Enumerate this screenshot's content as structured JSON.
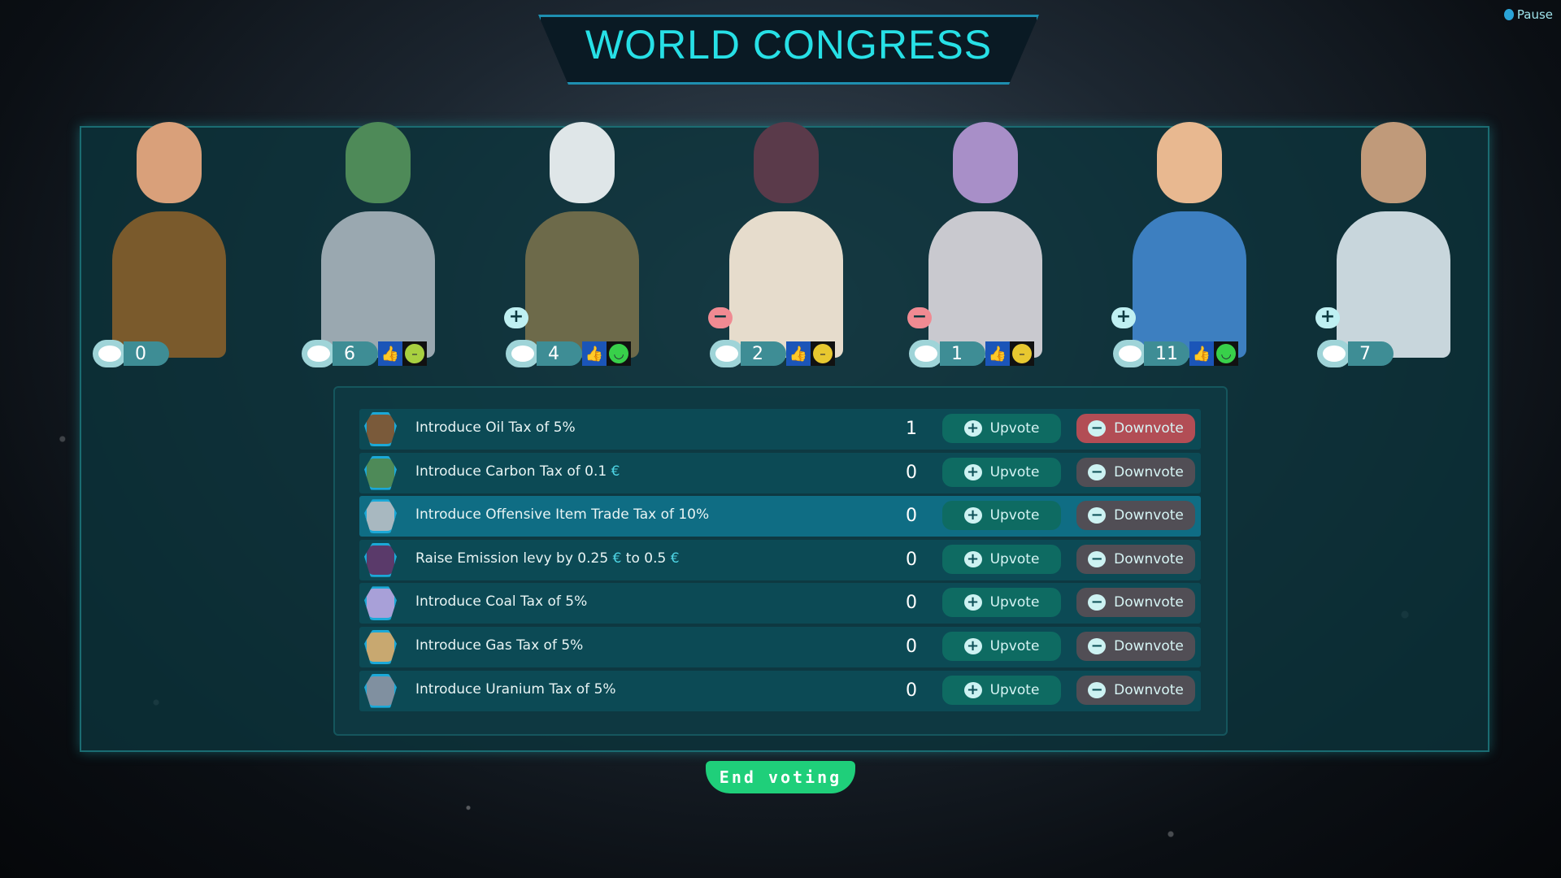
{
  "title": "WORLD CONGRESS",
  "pause_label": "Pause",
  "end_voting_label": "End voting",
  "colors": {
    "accent": "#27e0e6",
    "upvote": "#0e6b62",
    "downvote": "#514e55",
    "downvote_active": "#b24d55",
    "end_voting": "#1fcf7a"
  },
  "leaders": [
    {
      "count": "0",
      "opinion": null,
      "mood": null,
      "vote_bubble": null
    },
    {
      "count": "6",
      "opinion": "thumbs-up",
      "mood": "neutral",
      "vote_bubble": null
    },
    {
      "count": "4",
      "opinion": "thumbs-up",
      "mood": "happy",
      "vote_bubble": "upvote"
    },
    {
      "count": "2",
      "opinion": "thumbs-up",
      "mood": "uneasy",
      "vote_bubble": "downvote"
    },
    {
      "count": "1",
      "opinion": "thumbs-up",
      "mood": "uneasy",
      "vote_bubble": "downvote"
    },
    {
      "count": "11",
      "opinion": "thumbs-up",
      "mood": "happy",
      "vote_bubble": "upvote"
    },
    {
      "count": "7",
      "opinion": null,
      "mood": null,
      "vote_bubble": "upvote"
    }
  ],
  "upvote_label": "Upvote",
  "downvote_label": "Downvote",
  "proposals": [
    {
      "text": "Introduce Oil Tax of 5%",
      "votes": "1",
      "downvoted": true
    },
    {
      "text": "Introduce Carbon Tax of 0.1",
      "currency": "€",
      "votes": "0"
    },
    {
      "text": "Introduce Offensive Item Trade Tax of 10%",
      "votes": "0",
      "selected": true
    },
    {
      "text": "Raise Emission levy by 0.25",
      "currency": "€",
      "text2": " to 0.5",
      "currency2": "€",
      "votes": "0"
    },
    {
      "text": "Introduce Coal Tax of 5%",
      "votes": "0"
    },
    {
      "text": "Introduce Gas Tax of 5%",
      "votes": "0"
    },
    {
      "text": "Introduce Uranium Tax of 5%",
      "votes": "0"
    }
  ]
}
